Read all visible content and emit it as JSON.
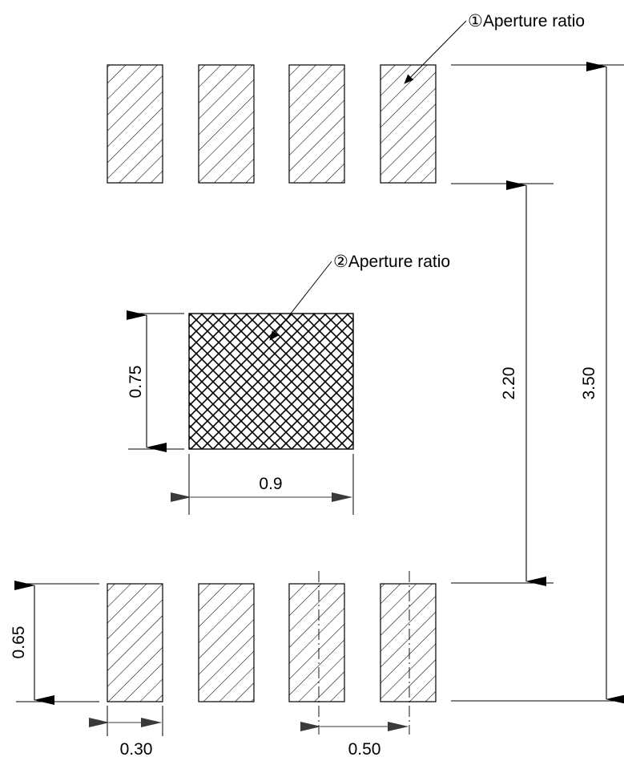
{
  "callouts": {
    "aperture_1": "①Aperture ratio",
    "aperture_2": "②Aperture ratio"
  },
  "dimensions": {
    "pad_pitch_vertical": "3.50",
    "pad_gap_vertical": "2.20",
    "center_pad_height": "0.75",
    "center_pad_width": "0.9",
    "pad_height": "0.65",
    "pad_width": "0.30",
    "pad_pitch": "0.50"
  },
  "colors": {
    "line": "#000000",
    "arrow_dark": "#3a3a3a"
  }
}
